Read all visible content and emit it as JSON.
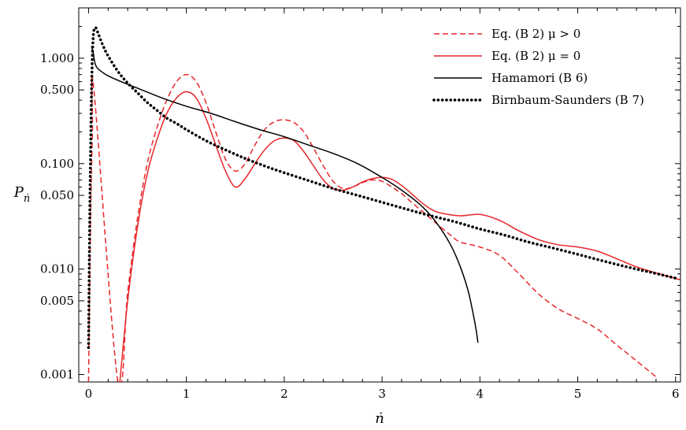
{
  "chart_data": {
    "type": "line",
    "title": "",
    "xlabel": "ṅ",
    "ylabel_main": "P",
    "ylabel_sub": "ṅ",
    "xlim": [
      -0.1,
      6.05
    ],
    "ylim": [
      0.00085,
      3.0
    ],
    "y_scale": "log",
    "x_ticks": [
      0,
      1,
      2,
      3,
      4,
      5,
      6
    ],
    "x_tick_labels": [
      "0",
      "1",
      "2",
      "3",
      "4",
      "5",
      "6"
    ],
    "y_ticks": [
      0.001,
      0.005,
      0.01,
      0.05,
      0.1,
      0.5,
      1.0
    ],
    "y_tick_labels": [
      "0.001",
      "0.005",
      "0.010",
      "0.050",
      "0.100",
      "0.500",
      "1.000"
    ],
    "grid": false,
    "legend_position": "top-right",
    "series": [
      {
        "name": "Eq. (B 2) μ > 0",
        "color": "#e8262a",
        "style": "dashed",
        "x": [
          0.0,
          0.01,
          0.025,
          0.04,
          0.055,
          0.3,
          0.4,
          0.5,
          0.6,
          0.7,
          0.8,
          0.9,
          1.0,
          1.1,
          1.2,
          1.3,
          1.4,
          1.5,
          1.6,
          1.7,
          1.8,
          1.9,
          2.0,
          2.1,
          2.2,
          2.3,
          2.4,
          2.5,
          2.6,
          2.7,
          2.8,
          2.9,
          3.0,
          3.1,
          3.2,
          3.3,
          3.4,
          3.5,
          3.6,
          3.7,
          3.8,
          4.0,
          4.2,
          4.4,
          4.6,
          4.8,
          5.0,
          5.2,
          5.4,
          5.6,
          5.8
        ],
        "y": [
          0.00085,
          0.005,
          0.05,
          0.2,
          0.5,
          0.00085,
          0.006,
          0.03,
          0.1,
          0.22,
          0.4,
          0.6,
          0.7,
          0.6,
          0.38,
          0.2,
          0.11,
          0.085,
          0.1,
          0.15,
          0.21,
          0.25,
          0.26,
          0.245,
          0.2,
          0.14,
          0.095,
          0.068,
          0.058,
          0.06,
          0.066,
          0.07,
          0.068,
          0.06,
          0.052,
          0.043,
          0.036,
          0.03,
          0.025,
          0.021,
          0.018,
          0.0162,
          0.0135,
          0.009,
          0.0058,
          0.0042,
          0.0034,
          0.0027,
          0.0019,
          0.00135,
          0.00095
        ]
      },
      {
        "name": "Eq. (B 2) μ = 0",
        "color": "#e8262a",
        "style": "solid",
        "x": [
          0.32,
          0.4,
          0.5,
          0.6,
          0.7,
          0.8,
          0.9,
          1.0,
          1.1,
          1.2,
          1.3,
          1.4,
          1.5,
          1.6,
          1.7,
          1.8,
          1.9,
          2.0,
          2.1,
          2.2,
          2.3,
          2.4,
          2.5,
          2.6,
          2.7,
          2.8,
          2.9,
          3.0,
          3.1,
          3.2,
          3.3,
          3.4,
          3.5,
          3.6,
          3.8,
          4.0,
          4.2,
          4.4,
          4.6,
          4.8,
          5.0,
          5.2,
          5.4,
          5.6,
          5.8,
          6.05
        ],
        "y": [
          0.00085,
          0.005,
          0.025,
          0.08,
          0.17,
          0.3,
          0.42,
          0.48,
          0.42,
          0.27,
          0.15,
          0.085,
          0.06,
          0.072,
          0.1,
          0.135,
          0.165,
          0.175,
          0.165,
          0.13,
          0.095,
          0.07,
          0.058,
          0.056,
          0.06,
          0.067,
          0.072,
          0.074,
          0.071,
          0.062,
          0.052,
          0.043,
          0.037,
          0.034,
          0.032,
          0.033,
          0.029,
          0.023,
          0.019,
          0.017,
          0.0162,
          0.0148,
          0.0125,
          0.0105,
          0.0092,
          0.0079
        ]
      },
      {
        "name": "Hamamori (B 6)",
        "color": "#000000",
        "style": "solid",
        "x": [
          0.03,
          0.05,
          0.06,
          0.08,
          0.12,
          0.2,
          0.35,
          0.5,
          0.75,
          1.0,
          1.25,
          1.5,
          1.75,
          2.0,
          2.25,
          2.5,
          2.75,
          3.0,
          3.2,
          3.4,
          3.55,
          3.7,
          3.8,
          3.88,
          3.93,
          3.96,
          3.98
        ],
        "y": [
          1.3,
          1.1,
          0.95,
          0.83,
          0.76,
          0.68,
          0.59,
          0.52,
          0.42,
          0.35,
          0.3,
          0.25,
          0.21,
          0.18,
          0.15,
          0.125,
          0.1,
          0.074,
          0.056,
          0.04,
          0.028,
          0.017,
          0.0105,
          0.0062,
          0.0038,
          0.0027,
          0.002
        ]
      },
      {
        "name": "Birnbaum-Saunders (B 7)",
        "color": "#000000",
        "style": "dotted",
        "x": [
          0.0,
          0.008,
          0.015,
          0.022,
          0.03,
          0.04,
          0.05,
          0.06,
          0.07,
          0.08,
          0.1,
          0.15,
          0.2,
          0.3,
          0.4,
          0.5,
          0.6,
          0.7,
          0.8,
          0.9,
          1.0,
          1.2,
          1.4,
          1.6,
          1.8,
          2.0,
          2.25,
          2.5,
          2.75,
          3.0,
          3.25,
          3.5,
          3.75,
          4.0,
          4.25,
          4.5,
          4.75,
          5.0,
          5.25,
          5.5,
          5.75,
          6.0
        ],
        "y": [
          0.0018,
          0.012,
          0.05,
          0.15,
          0.45,
          1.1,
          1.7,
          1.9,
          1.95,
          1.9,
          1.7,
          1.3,
          1.05,
          0.75,
          0.58,
          0.47,
          0.38,
          0.32,
          0.27,
          0.24,
          0.21,
          0.165,
          0.135,
          0.112,
          0.095,
          0.082,
          0.069,
          0.058,
          0.05,
          0.043,
          0.037,
          0.032,
          0.028,
          0.024,
          0.021,
          0.018,
          0.0158,
          0.0138,
          0.012,
          0.0105,
          0.0093,
          0.0082
        ]
      }
    ]
  }
}
